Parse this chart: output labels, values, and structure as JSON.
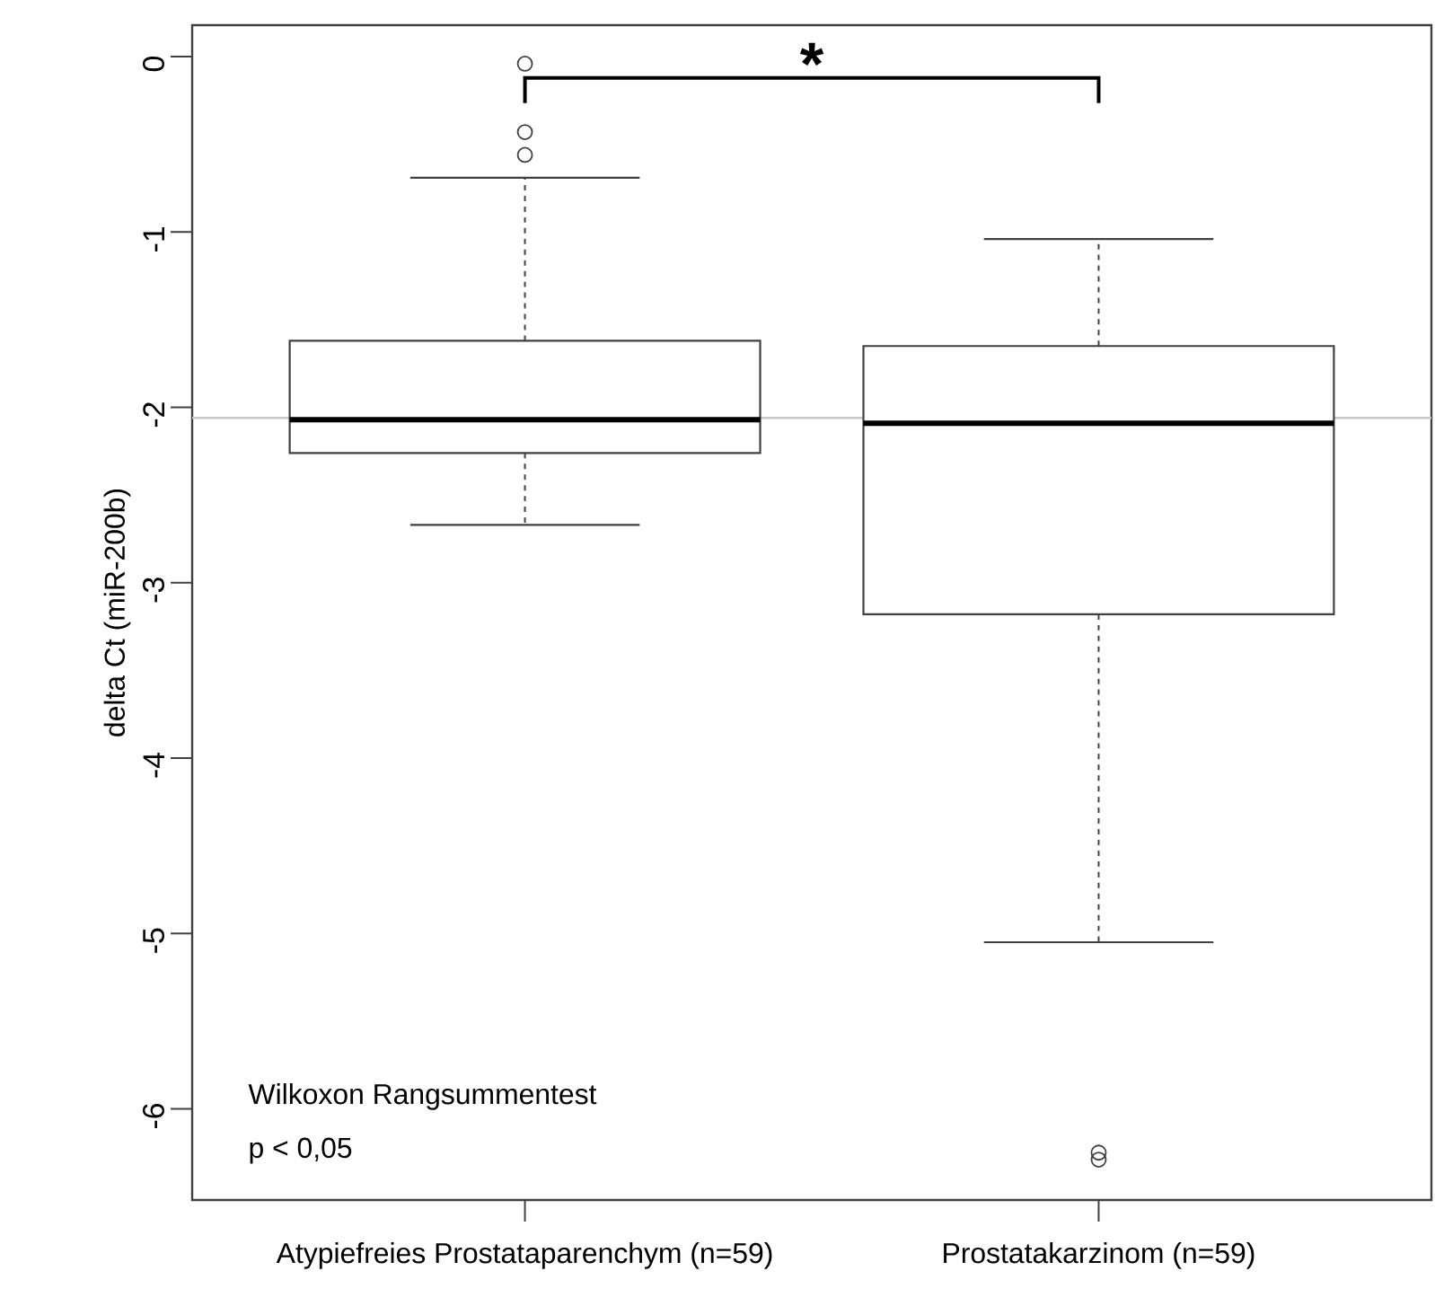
{
  "chart_data": {
    "type": "box",
    "ylabel": "delta Ct (miR-200b)",
    "categories": [
      "Atypiefreies Prostataparenchym (n=59)",
      "Prostatakarzinom (n=59)"
    ],
    "boxes": [
      {
        "low": -2.67,
        "q1": -2.26,
        "median": -2.07,
        "q3": -1.62,
        "high": -0.69,
        "outliers": [
          -0.43,
          -0.56,
          -0.04
        ]
      },
      {
        "low": -5.05,
        "q1": -3.18,
        "median": -2.09,
        "q3": -1.65,
        "high": -1.04,
        "outliers": [
          -6.25,
          -6.29
        ]
      }
    ],
    "color": "#404040",
    "ylim": [
      -6.52,
      0.18
    ],
    "yticks": [
      0,
      -1,
      -2,
      -3,
      -4,
      -5,
      -6
    ],
    "ref_lines": [
      {
        "axis": "y",
        "value": -2.06,
        "color": "#c8c8c8"
      }
    ],
    "annotations": [
      "*",
      "Wilkoxon Rangsummentest",
      "p < 0,05"
    ],
    "marker": "circle"
  }
}
